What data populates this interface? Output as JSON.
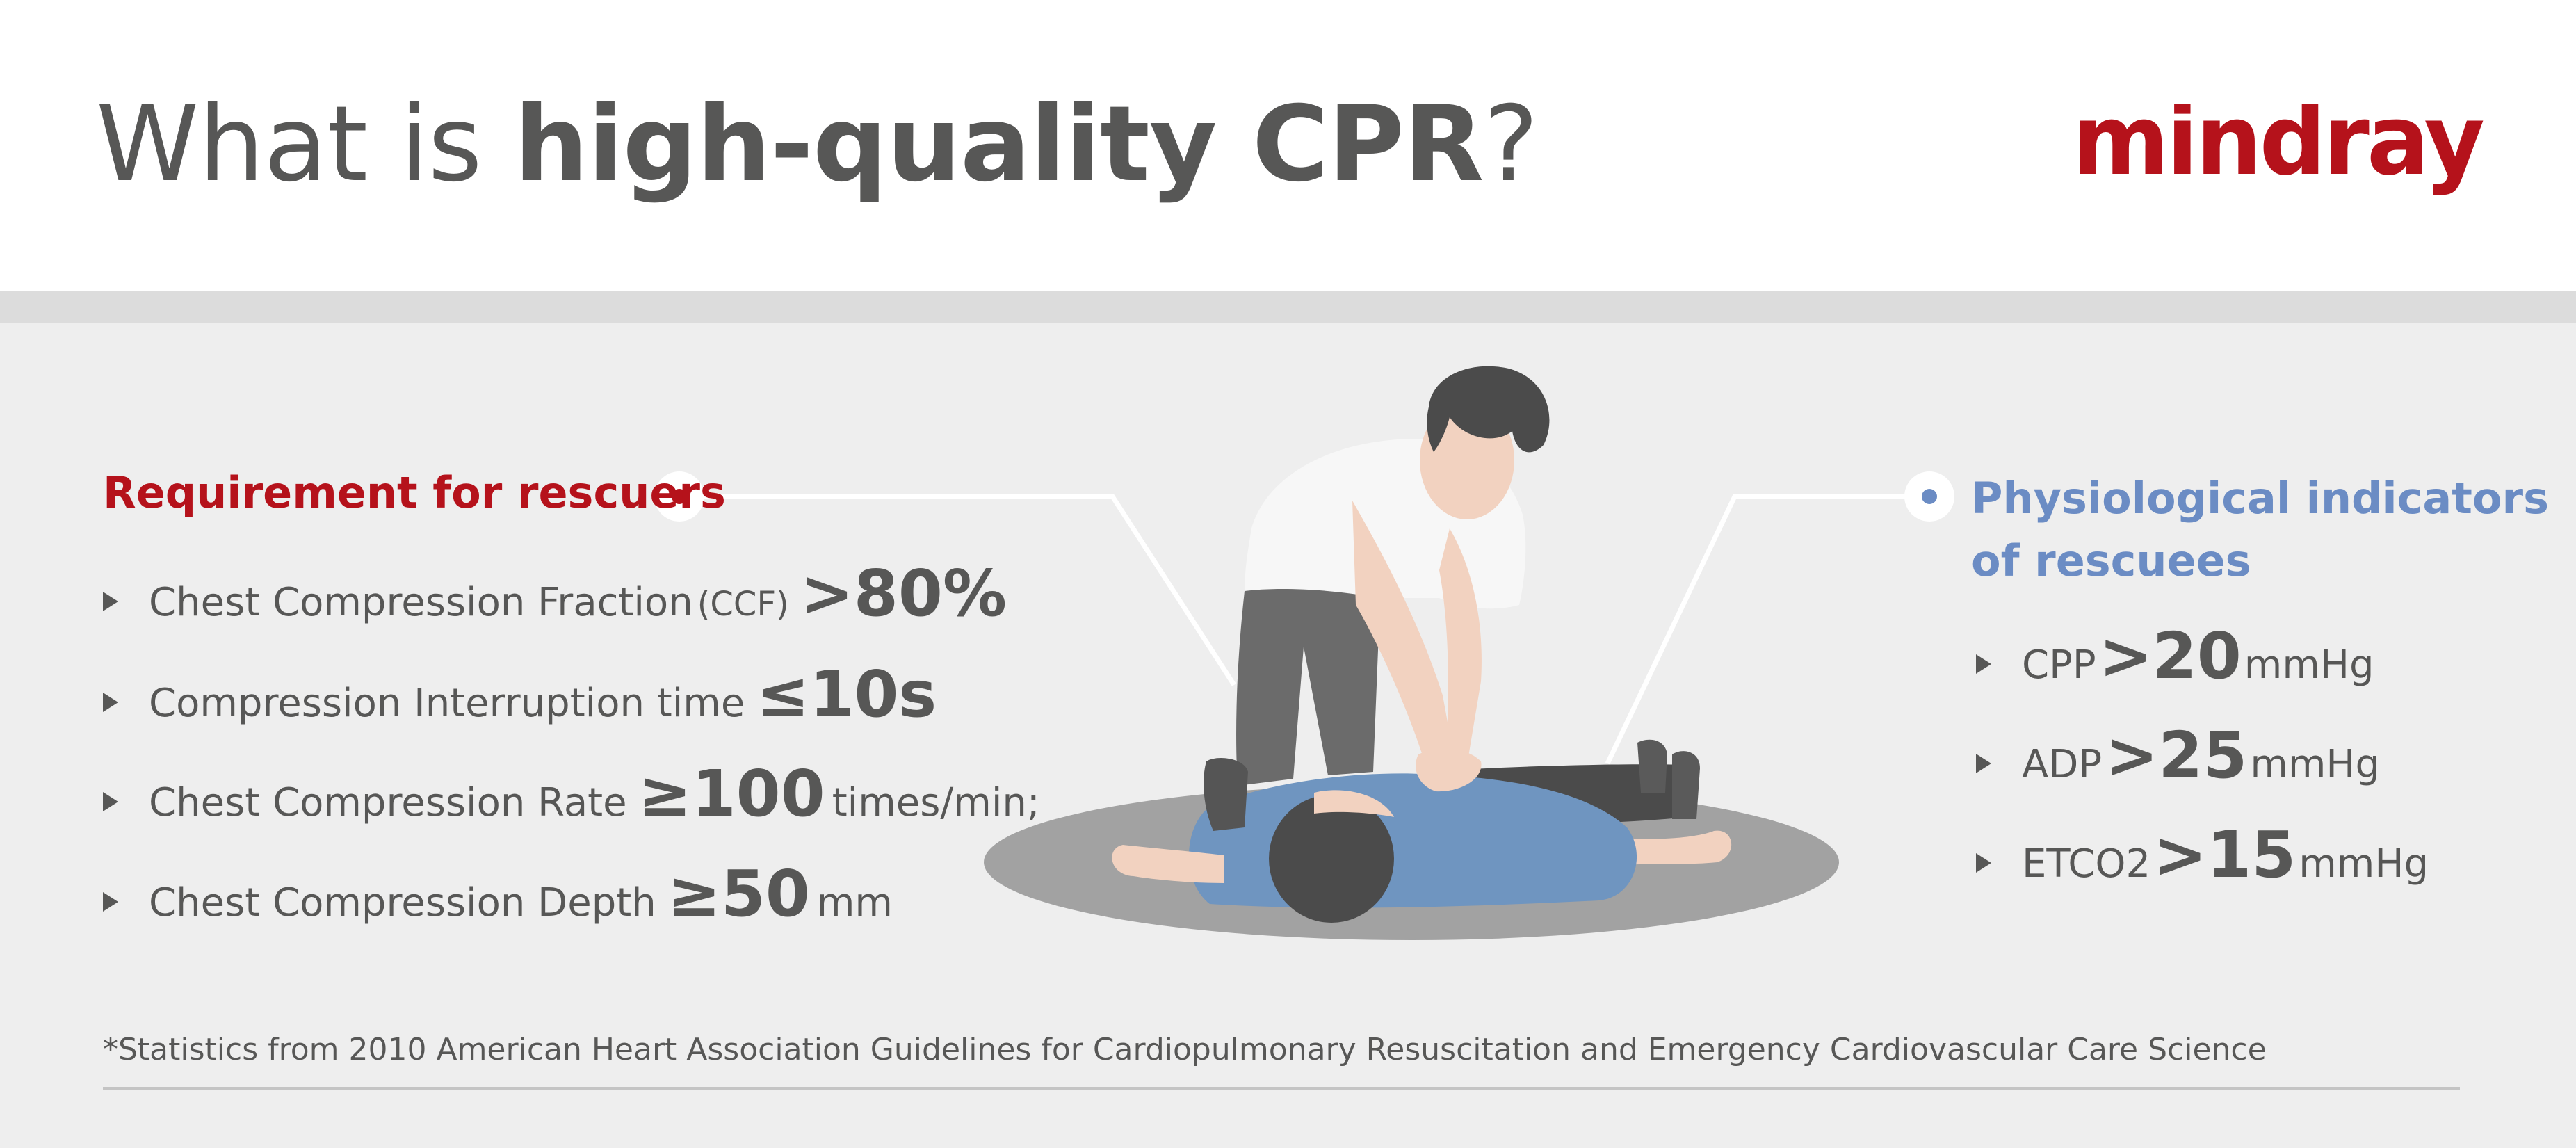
{
  "header": {
    "title_regular": "What is ",
    "title_bold": "high-quality CPR",
    "title_end": "?",
    "brand": "mindray"
  },
  "colors": {
    "brand_red": "#b5121b",
    "accent_blue": "#6b8cc4",
    "text_gray": "#575756"
  },
  "rescuers": {
    "heading": "Requirement for rescuers",
    "items": [
      {
        "label": "Chest Compression Fraction ",
        "sub": "(CCF)",
        "value": ">80%",
        "unit": ""
      },
      {
        "label": "Compression Interruption time ",
        "sub": "",
        "value": "≤10s",
        "unit": ""
      },
      {
        "label": "Chest Compression Rate ",
        "sub": "",
        "value": "≥100",
        "unit": "times/min;"
      },
      {
        "label": "Chest Compression Depth ",
        "sub": "",
        "value": "≥50",
        "unit": "mm"
      }
    ]
  },
  "rescuees": {
    "heading_line1": "Physiological indicators",
    "heading_line2": "of rescuees",
    "items": [
      {
        "label": "CPP",
        "value": ">20",
        "unit": "mmHg"
      },
      {
        "label": "ADP",
        "value": ">25",
        "unit": "mmHg"
      },
      {
        "label": "ETCO2",
        "value": ">15",
        "unit": "mmHg"
      }
    ]
  },
  "footnote": "*Statistics from 2010 American Heart Association Guidelines for Cardiopulmonary Resuscitation and Emergency Cardiovascular Care Science"
}
